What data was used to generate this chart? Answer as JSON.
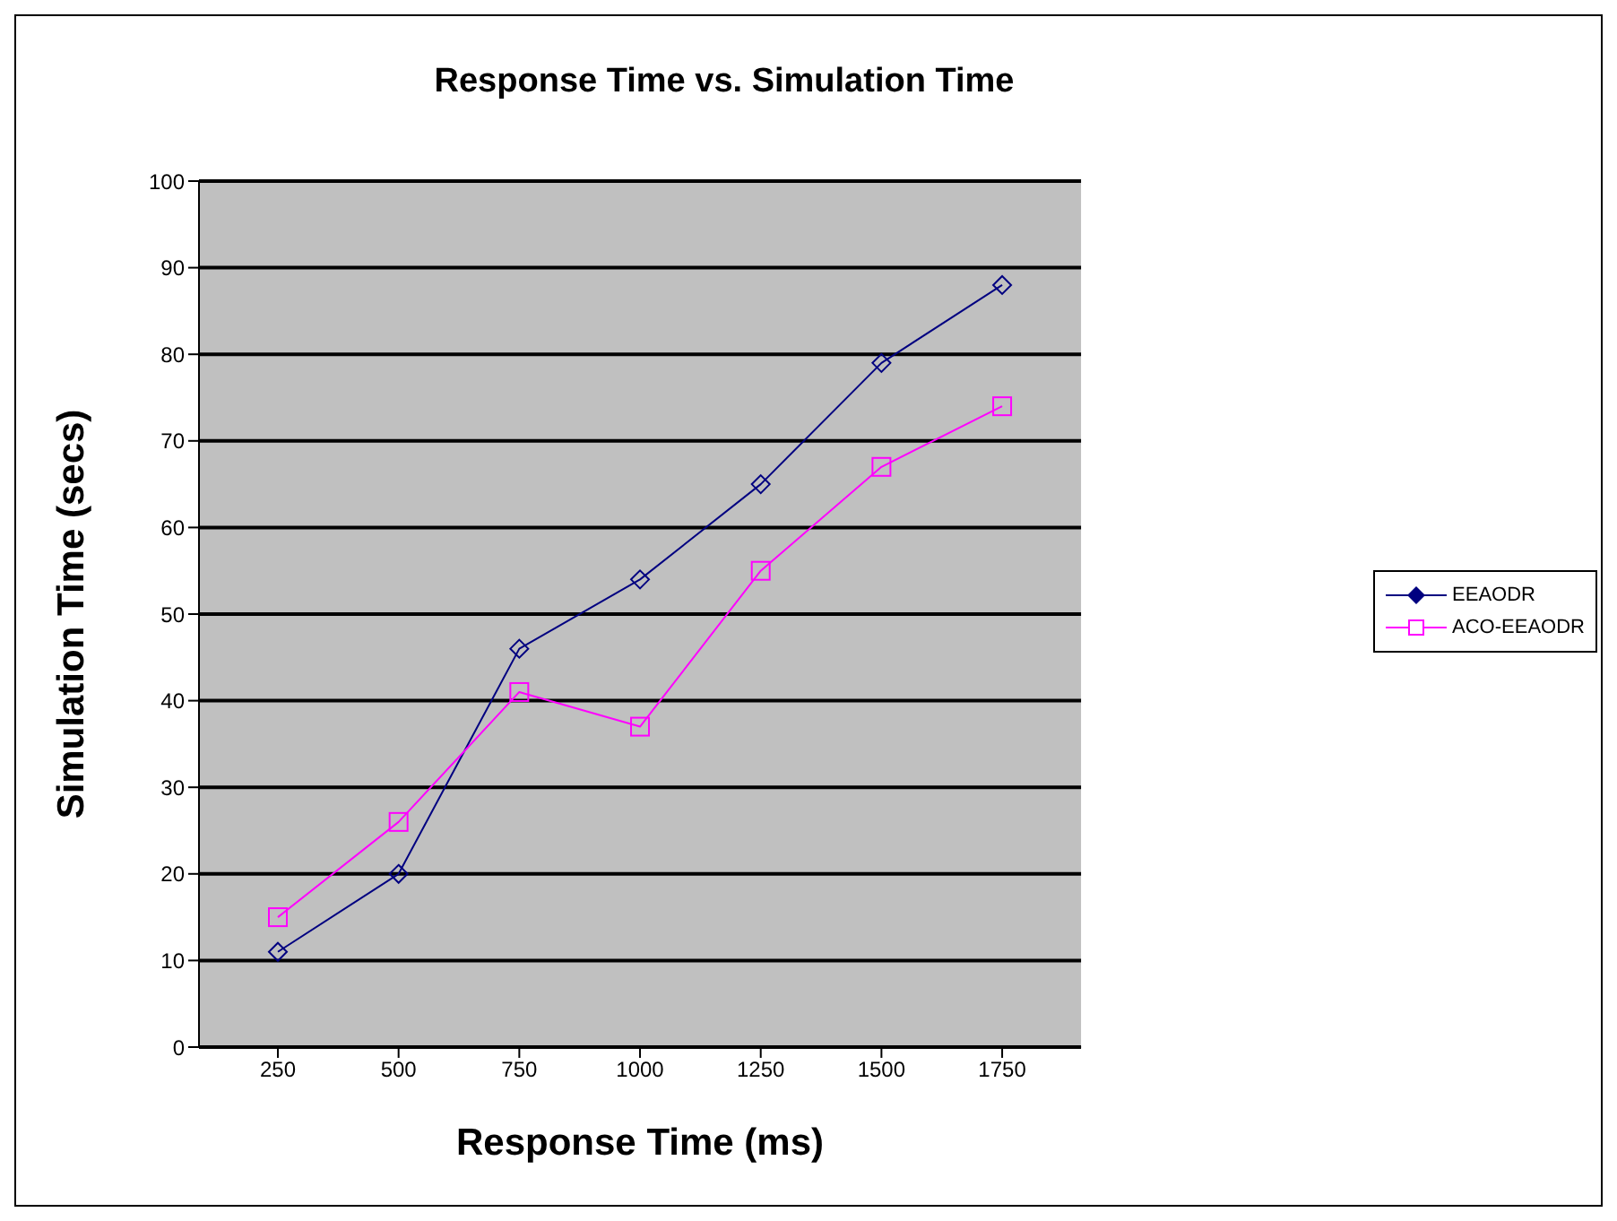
{
  "chart_data": {
    "type": "line",
    "title": "Response Time vs. Simulation Time",
    "xlabel": "Response Time (ms)",
    "ylabel": "Simulation Time (secs)",
    "categories": [
      "250",
      "500",
      "750",
      "1000",
      "1250",
      "1500",
      "1750"
    ],
    "series": [
      {
        "name": "EEAODR",
        "color": "#000080",
        "marker": "diamond",
        "values": [
          11,
          20,
          46,
          54,
          65,
          79,
          88
        ]
      },
      {
        "name": "ACO-EEAODR",
        "color": "#ff00ff",
        "marker": "square",
        "values": [
          15,
          26,
          41,
          37,
          55,
          67,
          74
        ]
      }
    ],
    "ylim": [
      0,
      100
    ],
    "yticks": [
      0,
      10,
      20,
      30,
      40,
      50,
      60,
      70,
      80,
      90,
      100
    ],
    "grid": "y",
    "legend": "right",
    "line_style": "solid"
  }
}
